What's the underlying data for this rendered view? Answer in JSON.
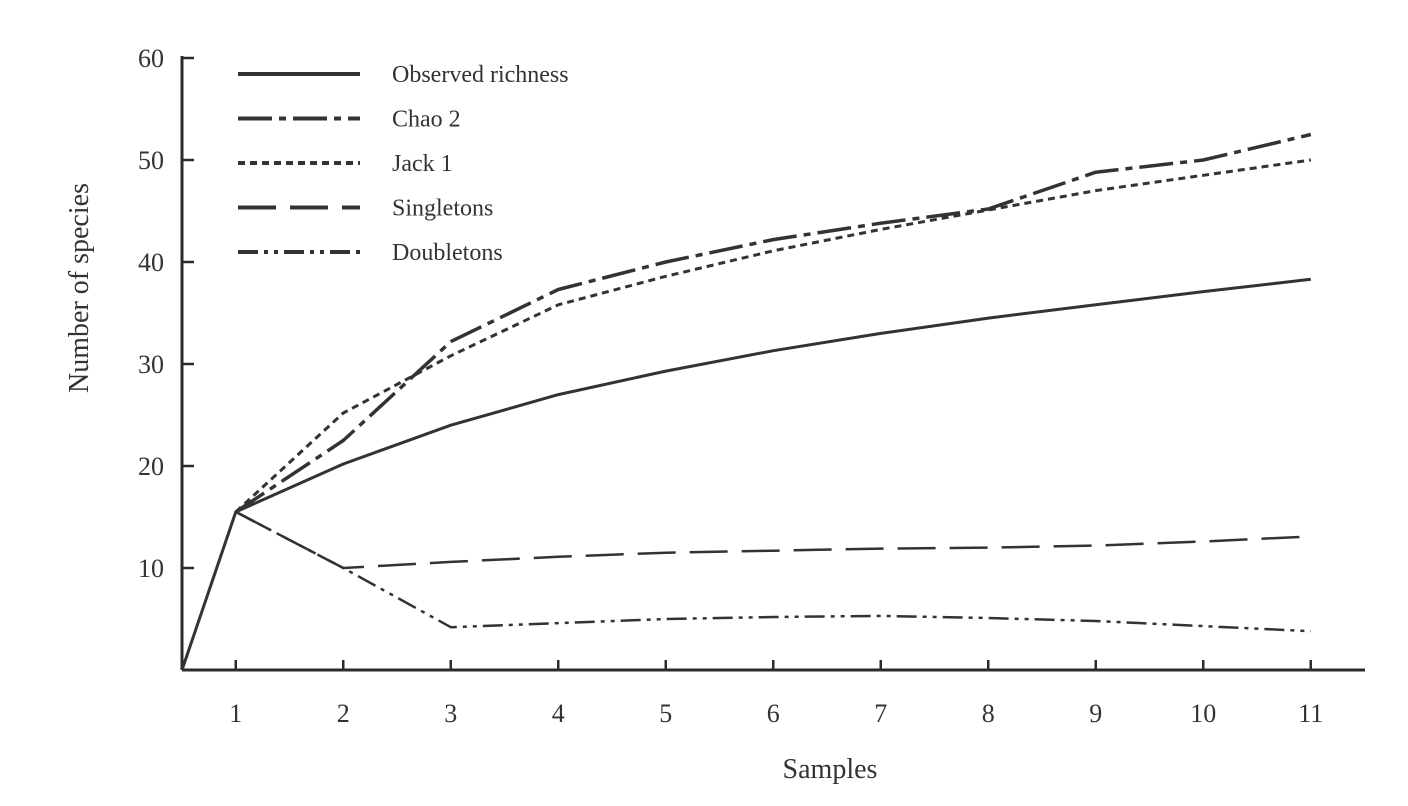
{
  "chart_data": {
    "type": "line",
    "title": "",
    "xlabel": "Samples",
    "ylabel": "Number of species",
    "xlim": [
      0.5,
      11.5
    ],
    "ylim": [
      0,
      60
    ],
    "x_ticks": [
      1,
      2,
      3,
      4,
      5,
      6,
      7,
      8,
      9,
      10,
      11
    ],
    "y_ticks": [
      10,
      20,
      30,
      40,
      50,
      60
    ],
    "grid": false,
    "legend_position": "top-left",
    "series": [
      {
        "name": "Observed richness",
        "style": "solid",
        "x": [
          0.5,
          1,
          2,
          3,
          4,
          5,
          6,
          7,
          8,
          9,
          10,
          11
        ],
        "y": [
          0,
          15.5,
          20.2,
          24,
          27,
          29.3,
          31.3,
          33,
          34.5,
          35.8,
          37.1,
          38.3
        ]
      },
      {
        "name": "Chao 2",
        "style": "long-dash-dot",
        "x": [
          1,
          2,
          3,
          4,
          5,
          6,
          7,
          8,
          9,
          10,
          11
        ],
        "y": [
          15.5,
          22.5,
          32.2,
          37.3,
          40,
          42.2,
          43.8,
          45.2,
          48.8,
          50,
          52.5
        ]
      },
      {
        "name": "Jack 1",
        "style": "dotted",
        "x": [
          1,
          2,
          3,
          4,
          5,
          6,
          7,
          8,
          9,
          10,
          11
        ],
        "y": [
          15.5,
          25.2,
          30.8,
          35.8,
          38.6,
          41.1,
          43.2,
          45.1,
          47,
          48.5,
          50
        ]
      },
      {
        "name": "Singletons",
        "style": "long-dash",
        "x": [
          1,
          2,
          3,
          4,
          5,
          6,
          7,
          8,
          9,
          10,
          11
        ],
        "y": [
          15.5,
          10,
          10.6,
          11.1,
          11.5,
          11.7,
          11.9,
          12,
          12.2,
          12.6,
          13.1
        ]
      },
      {
        "name": "Doubletons",
        "style": "dash-dot-dot",
        "x": [
          1,
          2,
          3,
          4,
          5,
          6,
          7,
          8,
          9,
          10,
          11
        ],
        "y": [
          15.5,
          10,
          4.2,
          4.6,
          5,
          5.2,
          5.3,
          5.1,
          4.8,
          4.3,
          3.8
        ]
      }
    ],
    "colors": {
      "axis": "#2b2b2b",
      "line": "#333333",
      "text": "#333333"
    }
  }
}
